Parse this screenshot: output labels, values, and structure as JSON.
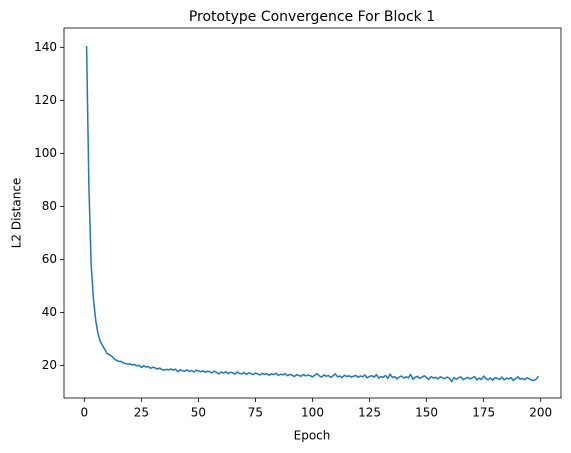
{
  "chart_data": {
    "type": "line",
    "title": "Prototype Convergence For Block 1",
    "x_label": "Epoch",
    "y_label": "L2 Distance",
    "color": "#1f77b4",
    "x": [
      1,
      2,
      3,
      4,
      5,
      6,
      7,
      8,
      9,
      10,
      11,
      12,
      13,
      14,
      15,
      16,
      17,
      18,
      19,
      20,
      21,
      22,
      23,
      24,
      25,
      26,
      27,
      28,
      29,
      30,
      31,
      32,
      33,
      34,
      35,
      36,
      37,
      38,
      39,
      40,
      41,
      42,
      43,
      44,
      45,
      46,
      47,
      48,
      49,
      50,
      51,
      52,
      53,
      54,
      55,
      56,
      57,
      58,
      59,
      60,
      61,
      62,
      63,
      64,
      65,
      66,
      67,
      68,
      69,
      70,
      71,
      72,
      73,
      74,
      75,
      76,
      77,
      78,
      79,
      80,
      81,
      82,
      83,
      84,
      85,
      86,
      87,
      88,
      89,
      90,
      91,
      92,
      93,
      94,
      95,
      96,
      97,
      98,
      99,
      100,
      101,
      102,
      103,
      104,
      105,
      106,
      107,
      108,
      109,
      110,
      111,
      112,
      113,
      114,
      115,
      116,
      117,
      118,
      119,
      120,
      121,
      122,
      123,
      124,
      125,
      126,
      127,
      128,
      129,
      130,
      131,
      132,
      133,
      134,
      135,
      136,
      137,
      138,
      139,
      140,
      141,
      142,
      143,
      144,
      145,
      146,
      147,
      148,
      149,
      150,
      151,
      152,
      153,
      154,
      155,
      156,
      157,
      158,
      159,
      160,
      161,
      162,
      163,
      164,
      165,
      166,
      167,
      168,
      169,
      170,
      171,
      172,
      173,
      174,
      175,
      176,
      177,
      178,
      179,
      180,
      181,
      182,
      183,
      184,
      185,
      186,
      187,
      188,
      189,
      190,
      191,
      192,
      193,
      194,
      195,
      196,
      197,
      198,
      199
    ],
    "values": [
      140.5,
      88,
      58,
      45,
      37,
      32,
      29,
      27.5,
      26,
      24.5,
      24,
      23.5,
      22.5,
      22,
      21.5,
      21.5,
      21,
      20.7,
      20.5,
      20.6,
      20.2,
      20.4,
      19.8,
      20.1,
      19.2,
      19.9,
      19.4,
      19.6,
      18.9,
      19.3,
      19.1,
      18.6,
      19.0,
      18.4,
      18.2,
      18.5,
      18.3,
      18.7,
      18.2,
      18.6,
      17.6,
      18.4,
      18.0,
      17.8,
      18.3,
      17.7,
      18.1,
      17.5,
      18.2,
      17.9,
      17.6,
      18.0,
      17.4,
      17.8,
      17.6,
      17.2,
      17.9,
      17.3,
      16.8,
      17.5,
      17.1,
      17.6,
      16.9,
      17.4,
      17.2,
      16.7,
      17.5,
      17.0,
      16.8,
      17.3,
      16.6,
      17.2,
      16.9,
      16.5,
      17.1,
      16.8,
      16.4,
      17.0,
      16.6,
      16.9,
      16.3,
      16.8,
      16.5,
      17.1,
      16.2,
      16.7,
      16.4,
      16.9,
      16.1,
      16.6,
      16.3,
      15.8,
      16.5,
      16.2,
      15.9,
      16.6,
      16.0,
      16.4,
      16.1,
      15.7,
      16.3,
      16.9,
      16.0,
      15.6,
      16.4,
      15.9,
      16.2,
      15.5,
      16.1,
      16.8,
      15.7,
      16.0,
      15.4,
      16.3,
      15.8,
      16.1,
      15.6,
      15.9,
      16.2,
      15.5,
      16.0,
      15.7,
      16.4,
      15.3,
      15.9,
      16.1,
      15.6,
      16.5,
      15.2,
      15.8,
      15.5,
      16.2,
      15.1,
      16.7,
      15.4,
      15.8,
      14.9,
      15.6,
      16.0,
      15.2,
      15.7,
      15.3,
      16.6,
      14.8,
      15.5,
      15.9,
      15.1,
      15.6,
      16.1,
      15.4,
      14.7,
      15.8,
      15.2,
      15.5,
      14.9,
      15.7,
      15.3,
      15.0,
      15.6,
      15.2,
      13.9,
      15.4,
      14.8,
      15.3,
      15.7,
      14.6,
      15.1,
      15.5,
      14.9,
      15.3,
      15.8,
      14.5,
      15.2,
      14.7,
      16.0,
      15.0,
      14.6,
      15.3,
      14.4,
      15.4,
      15.1,
      14.7,
      15.6,
      14.5,
      15.2,
      14.9,
      15.4,
      14.3,
      15.0,
      15.7,
      14.8,
      15.1,
      14.6,
      15.3,
      14.9,
      14.5,
      14.3,
      14.8,
      16.0
    ],
    "xlim": [
      -8.9,
      208.9
    ],
    "xticks": [
      0,
      25,
      50,
      75,
      100,
      125,
      150,
      175,
      200
    ],
    "ylim": [
      7.7,
      147.3
    ],
    "yticks": [
      20,
      40,
      60,
      80,
      100,
      120,
      140
    ]
  }
}
